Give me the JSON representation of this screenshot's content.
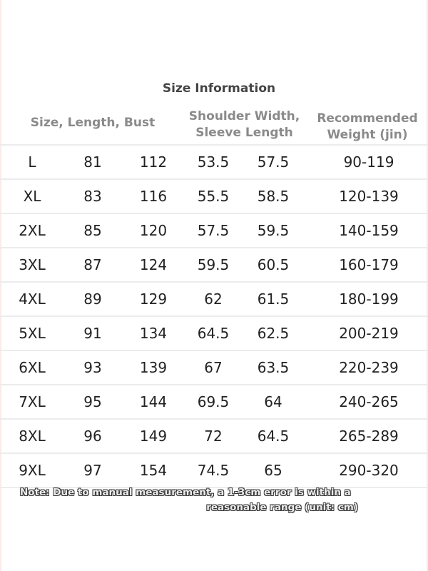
{
  "title": "Size Information",
  "headers": {
    "group1": "Size, Length, Bust",
    "group2_line1": "Shoulder Width,",
    "group2_line2": "Sleeve Length",
    "group3_line1": "Recommended",
    "group3_line2": "Weight (jin)"
  },
  "rows": [
    [
      "L",
      "81",
      "112",
      "53.5",
      "57.5",
      "90-119"
    ],
    [
      "XL",
      "83",
      "116",
      "55.5",
      "58.5",
      "120-139"
    ],
    [
      "2XL",
      "85",
      "120",
      "57.5",
      "59.5",
      "140-159"
    ],
    [
      "3XL",
      "87",
      "124",
      "59.5",
      "60.5",
      "160-179"
    ],
    [
      "4XL",
      "89",
      "129",
      "62",
      "61.5",
      "180-199"
    ],
    [
      "5XL",
      "91",
      "134",
      "64.5",
      "62.5",
      "200-219"
    ],
    [
      "6XL",
      "93",
      "139",
      "67",
      "63.5",
      "220-239"
    ],
    [
      "7XL",
      "95",
      "144",
      "69.5",
      "64",
      "240-265"
    ],
    [
      "8XL",
      "96",
      "149",
      "72",
      "64.5",
      "265-289"
    ],
    [
      "9XL",
      "97",
      "154",
      "74.5",
      "65",
      "290-320"
    ]
  ],
  "note": {
    "line1": "Note: Due to manual measurement, a 1-3cm error is within a",
    "line2": "reasonable range (unit: cm)"
  }
}
